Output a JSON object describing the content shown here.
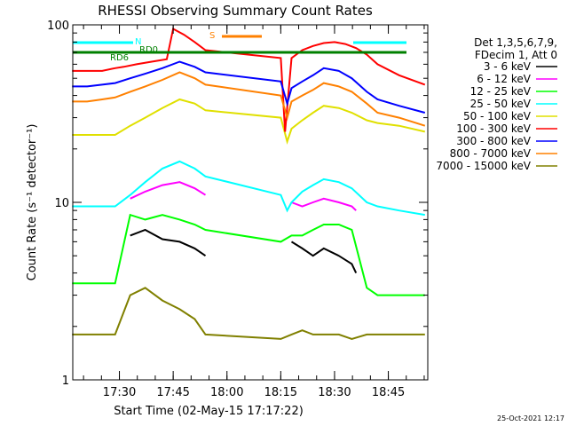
{
  "chart_data": {
    "type": "line",
    "title": "RHESSI Observing Summary Count Rates",
    "xlabel": "Start Time (02-May-15 17:17:22)",
    "ylabel": "Count Rate (s⁻¹ detector⁻¹)",
    "y_scale": "log",
    "ylim": [
      1,
      100
    ],
    "xlim_minutes": [
      17.2833,
      18.9333
    ],
    "x_ticks": [
      {
        "label": "17:30",
        "value": 17.5
      },
      {
        "label": "17:45",
        "value": 17.75
      },
      {
        "label": "18:00",
        "value": 18.0
      },
      {
        "label": "18:15",
        "value": 18.25
      },
      {
        "label": "18:30",
        "value": 18.5
      },
      {
        "label": "18:45",
        "value": 18.75
      }
    ],
    "y_ticks": [
      {
        "label": "1",
        "value": 1
      },
      {
        "label": "10",
        "value": 10
      },
      {
        "label": "100",
        "value": 100
      }
    ],
    "legend_header": [
      "Det 1,3,5,6,7,9,",
      "FDecim 1, Att 0"
    ],
    "legend_position": "right",
    "grid": false,
    "series": [
      {
        "name": "3 - 6 keV",
        "color": "#000000",
        "x": [
          17.5,
          17.55,
          17.62,
          17.7,
          17.78,
          17.85,
          17.9,
          18.25,
          18.3,
          18.35,
          18.4,
          18.45,
          18.52,
          18.58,
          18.6,
          18.65
        ],
        "y": [
          null,
          6.5,
          7.0,
          6.2,
          6.0,
          5.5,
          5.0,
          null,
          6.0,
          5.5,
          5.0,
          5.5,
          5.0,
          4.5,
          4.0,
          null
        ]
      },
      {
        "name": "6 - 12 keV",
        "color": "#ff00ff",
        "x": [
          17.5,
          17.55,
          17.62,
          17.7,
          17.78,
          17.85,
          17.9,
          18.25,
          18.3,
          18.35,
          18.4,
          18.45,
          18.52,
          18.58,
          18.6,
          18.65
        ],
        "y": [
          null,
          10.5,
          11.5,
          12.5,
          13.0,
          12.0,
          11.0,
          null,
          10.0,
          9.5,
          10.0,
          10.5,
          10.0,
          9.5,
          9.0,
          null
        ]
      },
      {
        "name": "12 - 25 keV",
        "color": "#00ff00",
        "x": [
          17.28,
          17.35,
          17.42,
          17.48,
          17.55,
          17.62,
          17.7,
          17.78,
          17.85,
          17.9,
          18.25,
          18.3,
          18.35,
          18.4,
          18.45,
          18.52,
          18.58,
          18.65,
          18.7,
          18.8,
          18.92
        ],
        "y": [
          3.5,
          3.5,
          3.5,
          3.5,
          8.5,
          8.0,
          8.5,
          8.0,
          7.5,
          7.0,
          6.0,
          6.5,
          6.5,
          7.0,
          7.5,
          7.5,
          7.0,
          3.3,
          3.0,
          3.0,
          3.0
        ]
      },
      {
        "name": "25 - 50 keV",
        "color": "#00ffff",
        "x": [
          17.28,
          17.35,
          17.42,
          17.48,
          17.55,
          17.62,
          17.7,
          17.78,
          17.85,
          17.9,
          18.25,
          18.28,
          18.3,
          18.35,
          18.4,
          18.45,
          18.52,
          18.58,
          18.65,
          18.7,
          18.8,
          18.92
        ],
        "y": [
          9.5,
          9.5,
          9.5,
          9.5,
          11.0,
          13.0,
          15.5,
          17.0,
          15.5,
          14.0,
          11.0,
          9.0,
          10.0,
          11.5,
          12.5,
          13.5,
          13.0,
          12.0,
          10.0,
          9.5,
          9.0,
          8.5
        ]
      },
      {
        "name": "50 - 100 keV",
        "color": "#e0e000",
        "x": [
          17.28,
          17.35,
          17.42,
          17.48,
          17.55,
          17.62,
          17.7,
          17.78,
          17.85,
          17.9,
          18.25,
          18.28,
          18.3,
          18.35,
          18.4,
          18.45,
          18.52,
          18.58,
          18.65,
          18.7,
          18.8,
          18.92
        ],
        "y": [
          24,
          24,
          24,
          24,
          27,
          30,
          34,
          38,
          36,
          33,
          30,
          22,
          26,
          29,
          32,
          35,
          34,
          32,
          29,
          28,
          27,
          25
        ]
      },
      {
        "name": "100 - 300 keV",
        "color": "#ff0000",
        "x": [
          17.28,
          17.35,
          17.42,
          17.48,
          17.52,
          17.58,
          17.65,
          17.72,
          17.75,
          17.8,
          17.85,
          17.9,
          18.25,
          18.27,
          18.3,
          18.35,
          18.4,
          18.45,
          18.5,
          18.55,
          18.6,
          18.65,
          18.7,
          18.8,
          18.92
        ],
        "y": [
          55,
          55,
          55,
          57,
          58,
          60,
          62,
          64,
          95,
          88,
          80,
          72,
          65,
          25,
          65,
          72,
          76,
          79,
          80,
          78,
          74,
          68,
          60,
          52,
          46
        ]
      },
      {
        "name": "300 - 800 keV",
        "color": "#0000ff",
        "x": [
          17.28,
          17.35,
          17.42,
          17.48,
          17.55,
          17.62,
          17.7,
          17.78,
          17.85,
          17.9,
          18.25,
          18.28,
          18.3,
          18.35,
          18.4,
          18.45,
          18.52,
          18.58,
          18.65,
          18.7,
          18.8,
          18.92
        ],
        "y": [
          45,
          45,
          46,
          47,
          50,
          53,
          57,
          62,
          58,
          54,
          48,
          36,
          44,
          48,
          52,
          57,
          55,
          50,
          42,
          38,
          35,
          32
        ]
      },
      {
        "name": "800 - 7000 keV",
        "color": "#ff8000",
        "x": [
          17.28,
          17.35,
          17.42,
          17.48,
          17.55,
          17.62,
          17.7,
          17.78,
          17.85,
          17.9,
          18.25,
          18.28,
          18.3,
          18.35,
          18.4,
          18.45,
          18.52,
          18.58,
          18.65,
          18.7,
          18.8,
          18.92
        ],
        "y": [
          37,
          37,
          38,
          39,
          42,
          45,
          49,
          54,
          50,
          46,
          40,
          30,
          37,
          40,
          43,
          47,
          45,
          42,
          36,
          32,
          30,
          27
        ]
      },
      {
        "name": "7000 - 15000 keV",
        "color": "#808000",
        "x": [
          17.28,
          17.35,
          17.42,
          17.48,
          17.55,
          17.62,
          17.7,
          17.78,
          17.85,
          17.9,
          18.25,
          18.3,
          18.35,
          18.4,
          18.45,
          18.52,
          18.58,
          18.65,
          18.7,
          18.8,
          18.92
        ],
        "y": [
          1.8,
          1.8,
          1.8,
          1.8,
          3.0,
          3.3,
          2.8,
          2.5,
          2.2,
          1.8,
          1.7,
          1.8,
          1.9,
          1.8,
          1.8,
          1.8,
          1.7,
          1.8,
          1.8,
          1.8,
          1.8
        ]
      }
    ],
    "annotations": {
      "flag_labels": [
        "N",
        "RD0",
        "RD6",
        "S"
      ]
    }
  },
  "footer": {
    "timestamp": "25-Oct-2021 12:17"
  }
}
